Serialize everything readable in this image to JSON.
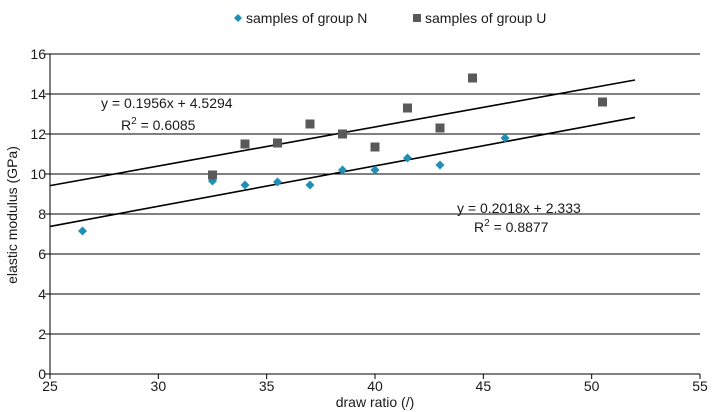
{
  "chart_data": {
    "type": "scatter",
    "xlabel": "draw ratio (/)",
    "ylabel": "elastic modulus (GPa)",
    "xlim": [
      25,
      55
    ],
    "ylim": [
      0,
      16
    ],
    "x_ticks": [
      25,
      30,
      35,
      40,
      45,
      50,
      55
    ],
    "y_ticks": [
      0,
      2,
      4,
      6,
      8,
      10,
      12,
      14,
      16
    ],
    "grid": "horizontal",
    "legend_position": "top-center",
    "series": [
      {
        "name": "samples of group N",
        "marker": "diamond",
        "color": "#1f8fb5",
        "points": [
          {
            "x": 26.5,
            "y": 7.15
          },
          {
            "x": 32.5,
            "y": 9.65
          },
          {
            "x": 34.0,
            "y": 9.45
          },
          {
            "x": 35.5,
            "y": 9.6
          },
          {
            "x": 37.0,
            "y": 9.45
          },
          {
            "x": 38.5,
            "y": 10.2
          },
          {
            "x": 40.0,
            "y": 10.2
          },
          {
            "x": 41.5,
            "y": 10.8
          },
          {
            "x": 43.0,
            "y": 10.45
          },
          {
            "x": 46.0,
            "y": 11.8
          }
        ],
        "trendline": {
          "slope": 0.2018,
          "intercept": 2.333,
          "x_range": [
            25,
            52
          ],
          "equation": "y = 0.2018x + 2.333",
          "r2_prefix": "R",
          "r2_sup": "2",
          "r2_value": " = 0.8877"
        }
      },
      {
        "name": "samples of group U",
        "marker": "square",
        "color": "#595959",
        "points": [
          {
            "x": 32.5,
            "y": 9.95
          },
          {
            "x": 34.0,
            "y": 11.5
          },
          {
            "x": 35.5,
            "y": 11.55
          },
          {
            "x": 37.0,
            "y": 12.5
          },
          {
            "x": 38.5,
            "y": 12.0
          },
          {
            "x": 40.0,
            "y": 11.35
          },
          {
            "x": 41.5,
            "y": 13.3
          },
          {
            "x": 43.0,
            "y": 12.3
          },
          {
            "x": 44.5,
            "y": 14.8
          },
          {
            "x": 50.5,
            "y": 13.6
          }
        ],
        "trendline": {
          "slope": 0.1956,
          "intercept": 4.5294,
          "x_range": [
            25,
            52
          ],
          "equation": "y = 0.1956x + 4.5294",
          "r2_prefix": "R",
          "r2_sup": "2",
          "r2_value": " = 0.6085"
        }
      }
    ]
  }
}
